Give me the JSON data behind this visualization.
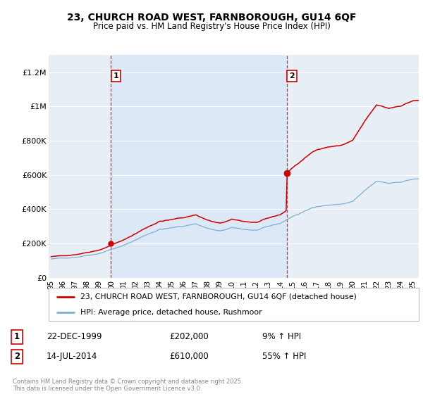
{
  "title_line1": "23, CHURCH ROAD WEST, FARNBOROUGH, GU14 6QF",
  "title_line2": "Price paid vs. HM Land Registry's House Price Index (HPI)",
  "ylabel_ticks": [
    "£0",
    "£200K",
    "£400K",
    "£600K",
    "£800K",
    "£1M",
    "£1.2M"
  ],
  "ytick_values": [
    0,
    200000,
    400000,
    600000,
    800000,
    1000000,
    1200000
  ],
  "ylim": [
    0,
    1300000
  ],
  "xlim_start": 1994.8,
  "xlim_end": 2025.5,
  "purchase1_date": 1999.97,
  "purchase1_price": 202000,
  "purchase1_label": "1",
  "purchase2_date": 2014.54,
  "purchase2_price": 610000,
  "purchase2_label": "2",
  "annotation1": [
    "1",
    "22-DEC-1999",
    "£202,000",
    "9% ↑ HPI"
  ],
  "annotation2": [
    "2",
    "14-JUL-2014",
    "£610,000",
    "55% ↑ HPI"
  ],
  "legend_line1": "23, CHURCH ROAD WEST, FARNBOROUGH, GU14 6QF (detached house)",
  "legend_line2": "HPI: Average price, detached house, Rushmoor",
  "footer": "Contains HM Land Registry data © Crown copyright and database right 2025.\nThis data is licensed under the Open Government Licence v3.0.",
  "line_color_property": "#cc0000",
  "line_color_hpi": "#7bafd4",
  "vline_color": "#cc0000",
  "bg_color": "#e8eef5",
  "highlight_bg": "#dce8f5",
  "grid_color": "#ffffff"
}
